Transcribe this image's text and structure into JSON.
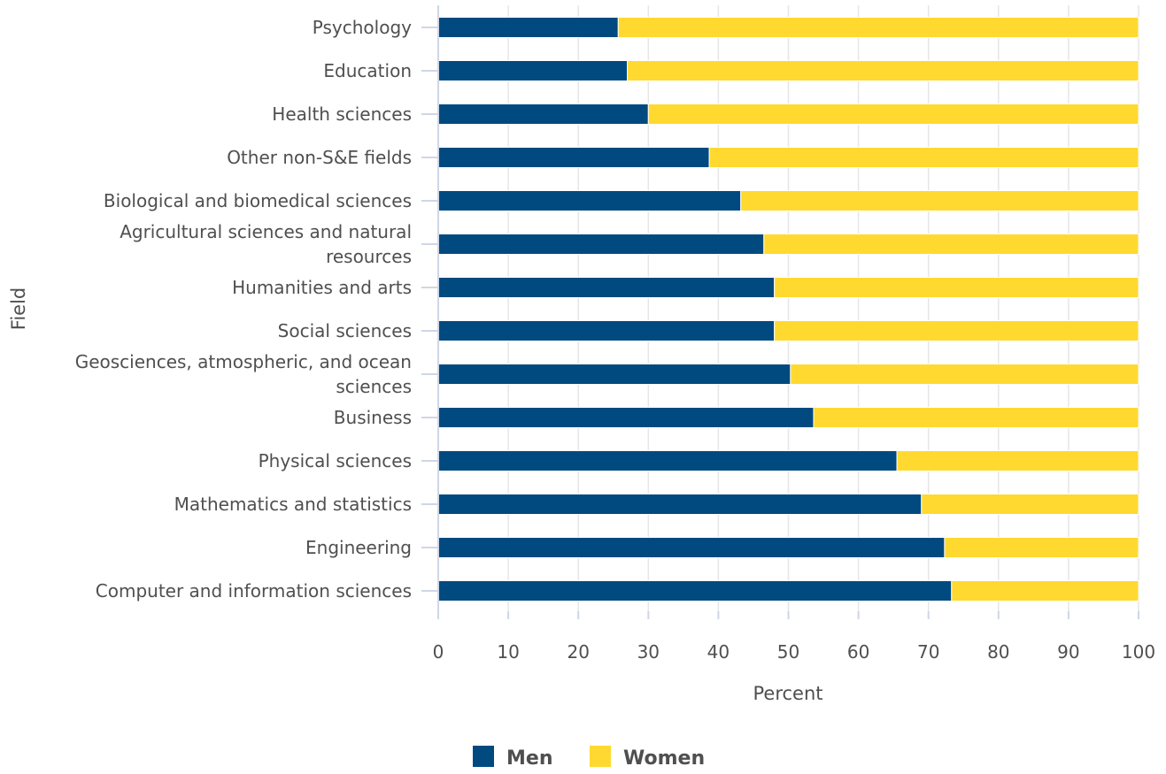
{
  "chart_data": {
    "type": "bar",
    "orientation": "horizontal",
    "stacked": true,
    "categories": [
      "Psychology",
      "Education",
      "Health sciences",
      "Other non-S&E fields",
      "Biological and biomedical sciences",
      "Agricultural sciences and natural resources",
      "Humanities and arts",
      "Social sciences",
      "Geosciences, atmospheric, and ocean sciences",
      "Business",
      "Physical sciences",
      "Mathematics and statistics",
      "Engineering",
      "Computer and information sciences"
    ],
    "category_lines": [
      [
        "Psychology"
      ],
      [
        "Education"
      ],
      [
        "Health sciences"
      ],
      [
        "Other non-S&E fields"
      ],
      [
        "Biological and biomedical sciences"
      ],
      [
        "Agricultural sciences and natural",
        "resources"
      ],
      [
        "Humanities and arts"
      ],
      [
        "Social sciences"
      ],
      [
        "Geosciences, atmospheric, and ocean",
        "sciences"
      ],
      [
        "Business"
      ],
      [
        "Physical sciences"
      ],
      [
        "Mathematics and statistics"
      ],
      [
        "Engineering"
      ],
      [
        "Computer and information sciences"
      ]
    ],
    "series": [
      {
        "name": "Men",
        "color": "#004a80",
        "values": [
          25.7,
          27.0,
          30.0,
          38.7,
          43.2,
          46.5,
          48.0,
          48.0,
          50.3,
          53.6,
          65.5,
          69.0,
          72.3,
          73.3
        ]
      },
      {
        "name": "Women",
        "color": "#ffd92f",
        "values": [
          74.3,
          73.0,
          70.0,
          61.3,
          56.8,
          53.5,
          52.0,
          52.0,
          49.7,
          46.4,
          34.5,
          31.0,
          27.7,
          26.7
        ]
      }
    ],
    "xlim": [
      0,
      100
    ],
    "xticks": [
      "0",
      "10",
      "20",
      "30",
      "40",
      "50",
      "60",
      "70",
      "80",
      "90",
      "100"
    ],
    "xlabel": "Percent",
    "ylabel": "Field",
    "grid": true,
    "legend_position": "bottom"
  }
}
